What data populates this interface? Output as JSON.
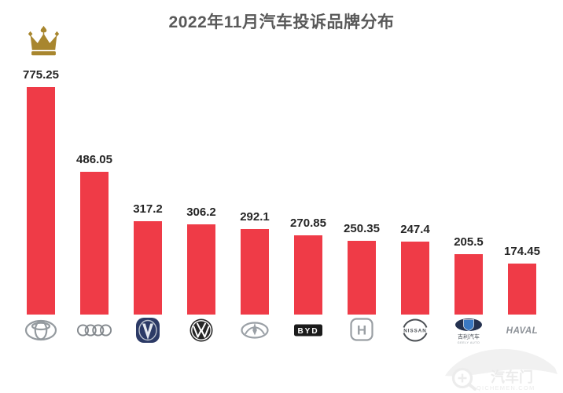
{
  "title": "2022年11月汽车投诉品牌分布",
  "chart_data": {
    "type": "bar",
    "title": "2022年11月汽车投诉品牌分布",
    "categories": [
      "Toyota",
      "Audi",
      "Changan",
      "Volkswagen",
      "Chery",
      "BYD",
      "Honda",
      "Nissan",
      "Geely",
      "Haval"
    ],
    "values": [
      775.25,
      486.05,
      317.2,
      306.2,
      292.1,
      270.85,
      250.35,
      247.4,
      205.5,
      174.45
    ],
    "xlabel": "",
    "ylabel": "",
    "ylim": [
      0,
      800
    ],
    "grid": false,
    "legend": false,
    "annotations": [
      "crown marker above leading bar (Toyota)"
    ]
  },
  "colors": {
    "bar": "#ef3b47",
    "title": "#595959",
    "value_label": "#252525",
    "crown_gold": "#a8862e",
    "watermark": "#ededed"
  },
  "logos": [
    {
      "id": "toyota"
    },
    {
      "id": "audi"
    },
    {
      "id": "changan"
    },
    {
      "id": "volkswagen"
    },
    {
      "id": "chery"
    },
    {
      "id": "byd",
      "text": "BYD"
    },
    {
      "id": "honda",
      "text": "H"
    },
    {
      "id": "nissan",
      "text": "NISSAN"
    },
    {
      "id": "geely",
      "text": "吉利汽车",
      "subtext": "GEELY AUTO"
    },
    {
      "id": "haval",
      "text": "HAVAL"
    }
  ],
  "watermark": {
    "icon": "car-magnifier-icon",
    "text": "汽车门",
    "subtext": "QICHEMEN.COM"
  }
}
